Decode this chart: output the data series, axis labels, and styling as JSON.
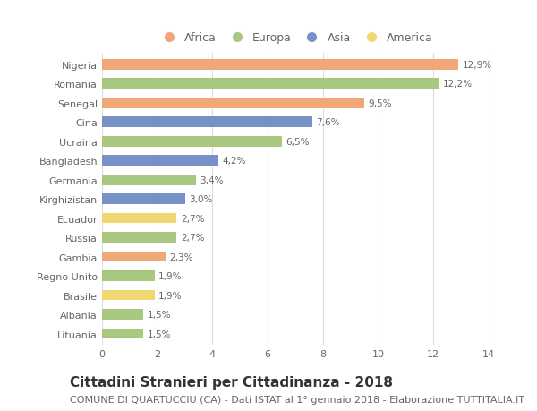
{
  "countries": [
    "Nigeria",
    "Romania",
    "Senegal",
    "Cina",
    "Ucraina",
    "Bangladesh",
    "Germania",
    "Kirghizistan",
    "Ecuador",
    "Russia",
    "Gambia",
    "Regno Unito",
    "Brasile",
    "Albania",
    "Lituania"
  ],
  "values": [
    12.9,
    12.2,
    9.5,
    7.6,
    6.5,
    4.2,
    3.4,
    3.0,
    2.7,
    2.7,
    2.3,
    1.9,
    1.9,
    1.5,
    1.5
  ],
  "labels": [
    "12,9%",
    "12,2%",
    "9,5%",
    "7,6%",
    "6,5%",
    "4,2%",
    "3,4%",
    "3,0%",
    "2,7%",
    "2,7%",
    "2,3%",
    "1,9%",
    "1,9%",
    "1,5%",
    "1,5%"
  ],
  "continents": [
    "Africa",
    "Europa",
    "Africa",
    "Asia",
    "Europa",
    "Asia",
    "Europa",
    "Asia",
    "America",
    "Europa",
    "Africa",
    "Europa",
    "America",
    "Europa",
    "Europa"
  ],
  "continent_colors": {
    "Africa": "#F0A878",
    "Europa": "#A8C880",
    "Asia": "#7890C8",
    "America": "#F0D870"
  },
  "legend_order": [
    "Africa",
    "Europa",
    "Asia",
    "America"
  ],
  "xlim": [
    0,
    14
  ],
  "xticks": [
    0,
    2,
    4,
    6,
    8,
    10,
    12,
    14
  ],
  "title": "Cittadini Stranieri per Cittadinanza - 2018",
  "subtitle": "COMUNE DI QUARTUCCIU (CA) - Dati ISTAT al 1° gennaio 2018 - Elaborazione TUTTITALIA.IT",
  "title_fontsize": 11,
  "subtitle_fontsize": 8,
  "background_color": "#ffffff",
  "grid_color": "#dddddd",
  "bar_height": 0.55
}
